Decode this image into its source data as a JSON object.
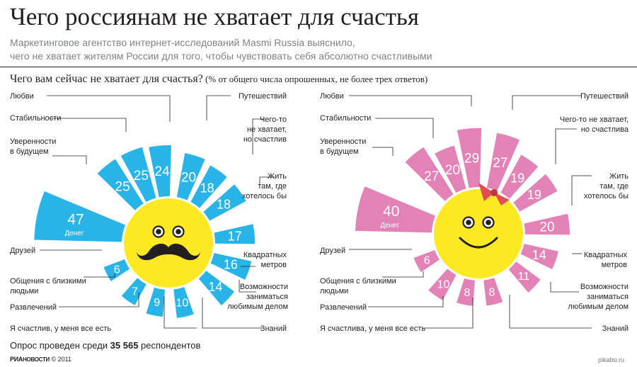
{
  "title": "Чего россиянам не хватает для счастья",
  "subtitle_lines": [
    "Маркетинговое агентство интернет-исследований Masmi Russia выяснило,",
    "чего не хватает жителям России для того, чтобы чувствовать себя абсолютно счастливыми"
  ],
  "question": {
    "main": "Чего вам сейчас не хватает для счастья?",
    "note": " (% от общего числа опрошенных, не более трех ответов)"
  },
  "footer": {
    "survey_prefix": "Опрос проведен среди ",
    "survey_count": "35 565",
    "survey_suffix": " респондентов",
    "logo_ria": "РИА",
    "logo_novosti": "НОВОСТИ",
    "copyright": "© 2011",
    "watermark": "pikabu.ru"
  },
  "colors": {
    "men": "#29b4e8",
    "women": "#e282b7",
    "face": "#fce924",
    "bow": "#e24b57",
    "text": "#231f20"
  },
  "chart_data": [
    {
      "type": "bar",
      "shape": "radial-sun",
      "name": "men",
      "categories": [
        "Денег",
        "Уверенности в будущем",
        "Стабильности",
        "Любви",
        "Путешествий",
        "Чего-то не хватает, но счастлив",
        "Жить там, где хотелось бы",
        "Квадратных метров",
        "Возможности заниматься любимым делом",
        "Знаний",
        "Я счастлив, у меня все есть",
        "Развлечений",
        "Общения с близкими людьми",
        "Друзей"
      ],
      "values": [
        47,
        25,
        25,
        24,
        20,
        18,
        18,
        17,
        16,
        14,
        10,
        9,
        7,
        6
      ],
      "value_label": "Денег",
      "icon": "mustache-face"
    },
    {
      "type": "bar",
      "shape": "radial-sun",
      "name": "women",
      "categories": [
        "Денег",
        "Уверенности в будущем",
        "Стабильности",
        "Любви",
        "Путешествий",
        "Чего-то не хватает, но счастлива",
        "Жить там, где хотелось бы",
        "Квадратных метров",
        "Возможности заниматься любимым делом",
        "Знаний",
        "Я счастлива, у меня все есть",
        "Развлечений",
        "Общения с близкими людьми",
        "Друзей"
      ],
      "values": [
        40,
        27,
        20,
        29,
        27,
        19,
        19,
        20,
        14,
        11,
        8,
        8,
        10,
        6
      ],
      "value_label": "Денег",
      "icon": "bow-smile-face"
    }
  ],
  "labels": {
    "men": [
      "Любви",
      "Стабильности",
      "Уверенности\nв будущем",
      "Друзей",
      "Общения с близкими\nлюдьми",
      "Развлечений",
      "Я счастлив, у меня все есть",
      "Путешествий",
      "Чего-то\nне хватает,\nно счастлив",
      "Жить\nтам, где\nхотелось бы",
      "Квадратных\nметров",
      "Возможности\nзаниматься\nлюбимым делом",
      "Знаний"
    ],
    "women": [
      "Любви",
      "Стабильности",
      "Уверенности\nв будущем",
      "Друзей",
      "Общения с близкими\nлюдьми",
      "Развлечений",
      "Я счастлива, у меня все есть",
      "Путешествий",
      "Чего-то не хватает,\nно счастлива",
      "Жить\nтам, где\nхотелось бы",
      "Квадратных\nметров",
      "Возможности\nзаниматься\nлюбимым делом",
      "Знаний"
    ]
  }
}
